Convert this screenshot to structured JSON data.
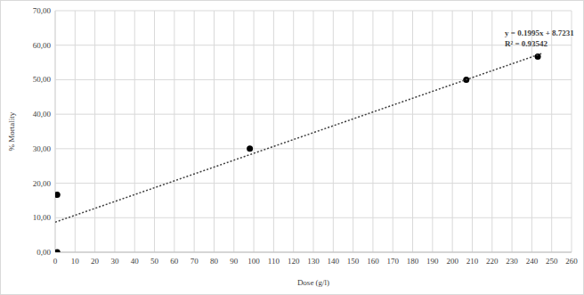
{
  "chart_data": {
    "type": "scatter",
    "x_label": "Dose (g/l)",
    "y_label": "% Mortality",
    "annotations": [
      "y = 0.1995x + 8.7231",
      "R² = 0.93542"
    ],
    "series": [
      {
        "type": "scatter",
        "color": "#000000",
        "marker": "circle",
        "x": [
          1,
          1,
          98,
          207,
          243
        ],
        "values": [
          16.67,
          0,
          30,
          50,
          56.67
        ]
      },
      {
        "type": "line",
        "color": "#404040",
        "line_style": "dotted",
        "x": [
          0,
          245
        ],
        "values": [
          8.72,
          57.6
        ]
      }
    ],
    "xlim": [
      0,
      260
    ],
    "xticks": [
      0,
      10,
      20,
      30,
      40,
      50,
      60,
      70,
      80,
      90,
      100,
      110,
      120,
      130,
      140,
      150,
      160,
      170,
      180,
      190,
      200,
      210,
      220,
      230,
      240,
      250,
      260
    ],
    "ylim": [
      0,
      70
    ],
    "yticks": [
      {
        "value": 0,
        "label": "0,00"
      },
      {
        "value": 10,
        "label": "10,00"
      },
      {
        "value": 20,
        "label": "20,00"
      },
      {
        "value": 30,
        "label": "30,00"
      },
      {
        "value": 40,
        "label": "40,00"
      },
      {
        "value": 50,
        "label": "50,00"
      },
      {
        "value": 60,
        "label": "60,00"
      },
      {
        "value": 70,
        "label": "70,00"
      }
    ],
    "grid": true
  }
}
